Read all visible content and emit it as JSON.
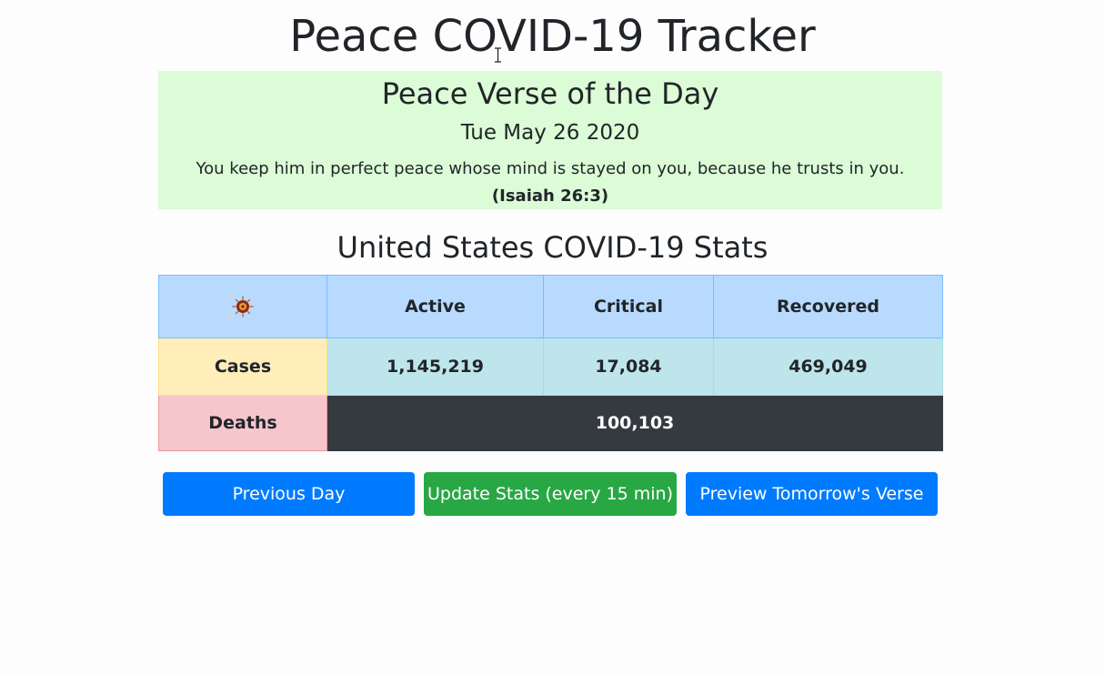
{
  "app": {
    "title": "Peace COVID-19 Tracker"
  },
  "verse": {
    "heading": "Peace Verse of the Day",
    "date": "Tue May 26 2020",
    "text": "You keep him in perfect peace whose mind is stayed on you, because he trusts in you.",
    "reference": "(Isaiah 26:3)"
  },
  "stats": {
    "heading": "United States COVID-19 Stats",
    "columns": [
      "Active",
      "Critical",
      "Recovered"
    ],
    "rows": {
      "cases_label": "Cases",
      "active": "1,145,219",
      "critical": "17,084",
      "recovered": "469,049",
      "deaths_label": "Deaths",
      "deaths": "100,103"
    }
  },
  "buttons": {
    "previous_day": "Previous Day",
    "update_stats": "Update Stats (every 15 min)",
    "preview_tomorrow": "Preview Tomorrow's Verse"
  },
  "icons": {
    "header_icon": "virus-icon",
    "cursor": "text-cursor-icon"
  },
  "colors": {
    "verse_background": "#dbfcd6",
    "header_row": "#b8daff",
    "cases_label": "#ffeeba",
    "info_cells": "#bee5eb",
    "deaths_label": "#f5c6cb",
    "deaths_value": "#343a40",
    "primary_button": "#007bff",
    "success_button": "#28a745"
  }
}
